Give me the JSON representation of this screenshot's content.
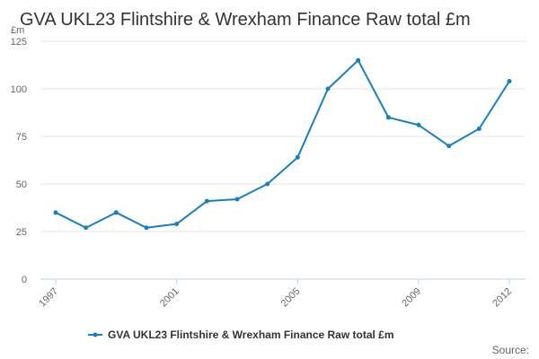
{
  "chart_data": {
    "type": "line",
    "title": "GVA UKL23 Flintshire & Wrexham Finance Raw total £m",
    "y_unit": "£m",
    "ylim": [
      0,
      125
    ],
    "y_ticks": [
      0,
      25,
      50,
      75,
      100,
      125
    ],
    "x": [
      1997,
      1998,
      1999,
      2000,
      2001,
      2002,
      2003,
      2004,
      2005,
      2006,
      2007,
      2008,
      2009,
      2010,
      2011,
      2012
    ],
    "x_tick_labels": [
      "1997",
      "2001",
      "2005",
      "2009",
      "2012"
    ],
    "series": [
      {
        "name": "GVA UKL23 Flintshire & Wrexham Finance Raw total £m",
        "color": "#1a7ec2",
        "values": [
          35,
          27,
          35,
          27,
          29,
          41,
          42,
          50,
          64,
          100,
          115,
          85,
          81,
          70,
          79,
          104
        ]
      }
    ],
    "grid": true,
    "legend_position": "bottom-center",
    "source_label": "Source:"
  }
}
